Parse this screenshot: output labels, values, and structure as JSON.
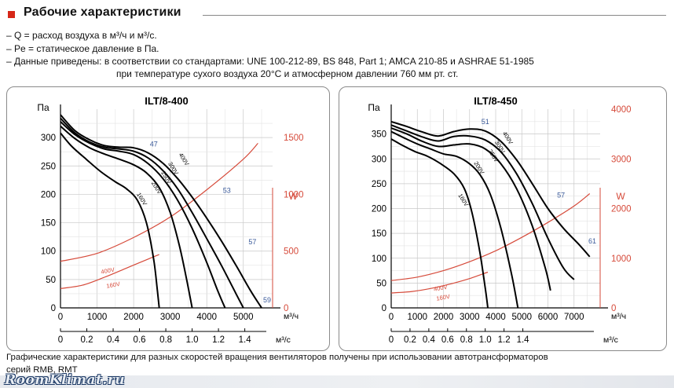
{
  "header": {
    "title": "Рабочие характеристики"
  },
  "notes": [
    "– Q = расход воздуха в м³/ч и м³/с.",
    "– Pe = статическое давление в Па.",
    "– Данные приведены: в соответствии со стандартами: UNE 100-212-89, BS 848, Part 1; AMCA 210-85 и ASHRAE 51-1985",
    "при температуре сухого воздуха 20°C и атмосферном давлении 760 мм рт. ст."
  ],
  "caption": {
    "line1": "Графические характеристики для разных скоростей вращения вентиляторов получены при использовании автотрансформаторов",
    "line2": "серий RMB, RMT"
  },
  "watermark": "RoomKlimat.ru",
  "colors": {
    "accent": "#d62718",
    "power": "#d64a3a",
    "curve": "#000000",
    "efficiency_label": "#3a5a9a",
    "grid": "#c8c8c8"
  },
  "chart_data": [
    {
      "type": "line",
      "title": "ILT/8-400",
      "ylabel": "Па",
      "y2label": "W",
      "xlabel": "м³/ч",
      "x2label": "м³/с",
      "xlim": [
        0,
        5800
      ],
      "ylim": [
        0,
        350
      ],
      "y2lim": [
        0,
        1750
      ],
      "x_ticks": [
        0,
        1000,
        2000,
        3000,
        4000,
        5000
      ],
      "y_ticks": [
        0,
        50,
        100,
        150,
        200,
        250,
        300
      ],
      "y2_ticks": [
        0,
        500,
        1000,
        1500
      ],
      "x2_ticks": [
        {
          "label": "0",
          "value": 0
        },
        {
          "label": "0.2",
          "value": 720
        },
        {
          "label": "0.4",
          "value": 1440
        },
        {
          "label": "0.6",
          "value": 2160
        },
        {
          "label": "0.8",
          "value": 2880
        },
        {
          "label": "1.0",
          "value": 3600
        },
        {
          "label": "1.2",
          "value": 4320
        },
        {
          "label": "1.4",
          "value": 5040
        }
      ],
      "pressure_series": [
        {
          "name": "160V",
          "x": [
            0,
            300,
            700,
            1100,
            1500,
            1800,
            2100,
            2350,
            2550,
            2650,
            2700
          ],
          "y": [
            308,
            285,
            262,
            240,
            222,
            210,
            190,
            150,
            85,
            30,
            0
          ]
        },
        {
          "name": "200V",
          "x": [
            0,
            400,
            800,
            1200,
            1600,
            2000,
            2350,
            2700,
            3000,
            3250,
            3450,
            3600
          ],
          "y": [
            320,
            298,
            282,
            271,
            262,
            252,
            238,
            212,
            168,
            110,
            50,
            0
          ]
        },
        {
          "name": "250V",
          "x": [
            0,
            400,
            800,
            1200,
            1600,
            2000,
            2400,
            2800,
            3200,
            3600,
            4000,
            4300,
            4500
          ],
          "y": [
            328,
            305,
            290,
            280,
            276,
            270,
            254,
            228,
            190,
            140,
            80,
            30,
            0
          ]
        },
        {
          "name": "300V",
          "x": [
            0,
            400,
            800,
            1200,
            1600,
            2000,
            2400,
            2800,
            3200,
            3600,
            4000,
            4400,
            4800,
            5000
          ],
          "y": [
            334,
            308,
            292,
            283,
            280,
            276,
            264,
            242,
            210,
            168,
            122,
            75,
            25,
            0
          ]
        },
        {
          "name": "400V",
          "x": [
            0,
            400,
            800,
            1200,
            1600,
            2000,
            2400,
            2800,
            3200,
            3600,
            4000,
            4400,
            4800,
            5200,
            5500
          ],
          "y": [
            340,
            312,
            296,
            286,
            283,
            282,
            273,
            255,
            228,
            195,
            158,
            118,
            75,
            30,
            0
          ]
        }
      ],
      "power_series": [
        {
          "name": "400V",
          "x": [
            0,
            1000,
            2000,
            3000,
            4000,
            5000,
            5400
          ],
          "y": [
            410,
            480,
            620,
            800,
            1040,
            1310,
            1450
          ]
        },
        {
          "name": "160V",
          "x": [
            0,
            600,
            1200,
            1800,
            2400,
            2700
          ],
          "y": [
            170,
            200,
            270,
            350,
            430,
            470
          ]
        }
      ],
      "labels": [
        {
          "text": "47",
          "x": 2550,
          "y": 284,
          "kind": "efficiency"
        },
        {
          "text": "53",
          "x": 4550,
          "y": 203,
          "kind": "efficiency"
        },
        {
          "text": "57",
          "x": 5250,
          "y": 112,
          "kind": "efficiency"
        },
        {
          "text": "59",
          "x": 5650,
          "y": 10,
          "kind": "efficiency"
        },
        {
          "text": "400V",
          "x": 3330,
          "y": 260,
          "kind": "voltage"
        },
        {
          "text": "300V",
          "x": 3040,
          "y": 244,
          "kind": "voltage"
        },
        {
          "text": "250V",
          "x": 2850,
          "y": 228,
          "kind": "voltage"
        },
        {
          "text": "200V",
          "x": 2580,
          "y": 210,
          "kind": "voltage"
        },
        {
          "text": "160V",
          "x": 2180,
          "y": 190,
          "kind": "voltage"
        },
        {
          "text": "400V",
          "x": 1300,
          "y": 62,
          "kind": "power"
        },
        {
          "text": "160V",
          "x": 1450,
          "y": 37,
          "kind": "power"
        }
      ]
    },
    {
      "type": "line",
      "title": "ILT/8-450",
      "ylabel": "Па",
      "y2label": "W",
      "xlabel": "м³/ч",
      "x2label": "м³/с",
      "xlim": [
        0,
        8000
      ],
      "ylim": [
        0,
        400
      ],
      "y2lim": [
        0,
        4000
      ],
      "x_ticks": [
        0,
        1000,
        2000,
        3000,
        4000,
        5000,
        6000,
        7000
      ],
      "y_ticks": [
        0,
        50,
        100,
        150,
        200,
        250,
        300,
        350
      ],
      "y2_ticks": [
        0,
        1000,
        2000,
        3000,
        4000
      ],
      "x2_ticks": [
        {
          "label": "0",
          "value": 0
        },
        {
          "label": "0.2",
          "value": 720
        },
        {
          "label": "0.4",
          "value": 1440
        },
        {
          "label": "0.6",
          "value": 2160
        },
        {
          "label": "0.8",
          "value": 2880
        },
        {
          "label": "1.0",
          "value": 3600
        },
        {
          "label": "1.2",
          "value": 4320
        },
        {
          "label": "1.4",
          "value": 5040
        }
      ],
      "pressure_series": [
        {
          "name": "160V",
          "x": [
            0,
            400,
            900,
            1400,
            1900,
            2400,
            2800,
            3100,
            3400,
            3600,
            3700
          ],
          "y": [
            340,
            328,
            315,
            305,
            290,
            270,
            240,
            190,
            110,
            40,
            0
          ]
        },
        {
          "name": "200V",
          "x": [
            0,
            500,
            1000,
            1500,
            2000,
            2500,
            3000,
            3400,
            3800,
            4200,
            4600,
            4850
          ],
          "y": [
            355,
            342,
            330,
            320,
            310,
            305,
            290,
            268,
            228,
            160,
            70,
            0
          ]
        },
        {
          "name": "250V",
          "x": [
            0,
            600,
            1200,
            1800,
            2400,
            3000,
            3600,
            4200,
            4800,
            5400,
            5900,
            6100
          ],
          "y": [
            362,
            350,
            335,
            325,
            328,
            330,
            320,
            290,
            240,
            165,
            80,
            35
          ]
        },
        {
          "name": "300V",
          "x": [
            0,
            600,
            1200,
            1800,
            2400,
            3000,
            3600,
            4200,
            4800,
            5400,
            6000,
            6600,
            7000
          ],
          "y": [
            368,
            356,
            344,
            336,
            345,
            346,
            338,
            314,
            270,
            210,
            140,
            80,
            57
          ]
        },
        {
          "name": "400V",
          "x": [
            0,
            600,
            1200,
            1800,
            2400,
            3000,
            3600,
            4200,
            4800,
            5400,
            6000,
            6600,
            7200,
            7600
          ],
          "y": [
            375,
            365,
            354,
            346,
            355,
            360,
            356,
            335,
            298,
            250,
            200,
            160,
            127,
            103
          ]
        }
      ],
      "power_series": [
        {
          "name": "400V",
          "x": [
            0,
            1000,
            2000,
            3000,
            4000,
            5000,
            6000,
            7000,
            7600
          ],
          "y": [
            550,
            620,
            750,
            930,
            1150,
            1420,
            1720,
            2050,
            2300
          ]
        },
        {
          "name": "160V",
          "x": [
            0,
            800,
            1600,
            2400,
            3000,
            3700
          ],
          "y": [
            300,
            330,
            400,
            500,
            590,
            720
          ]
        }
      ],
      "labels": [
        {
          "text": "51",
          "x": 3600,
          "y": 370,
          "kind": "efficiency"
        },
        {
          "text": "57",
          "x": 6500,
          "y": 222,
          "kind": "efficiency"
        },
        {
          "text": "61",
          "x": 7700,
          "y": 130,
          "kind": "efficiency"
        },
        {
          "text": "400V",
          "x": 4400,
          "y": 340,
          "kind": "voltage"
        },
        {
          "text": "300V",
          "x": 4100,
          "y": 322,
          "kind": "voltage"
        },
        {
          "text": "250V",
          "x": 3850,
          "y": 304,
          "kind": "voltage"
        },
        {
          "text": "200V",
          "x": 3300,
          "y": 280,
          "kind": "voltage"
        },
        {
          "text": "160V",
          "x": 2700,
          "y": 215,
          "kind": "voltage"
        },
        {
          "text": "400V",
          "x": 1900,
          "y": 36,
          "kind": "power"
        },
        {
          "text": "160V",
          "x": 2000,
          "y": 17,
          "kind": "power"
        }
      ]
    }
  ]
}
